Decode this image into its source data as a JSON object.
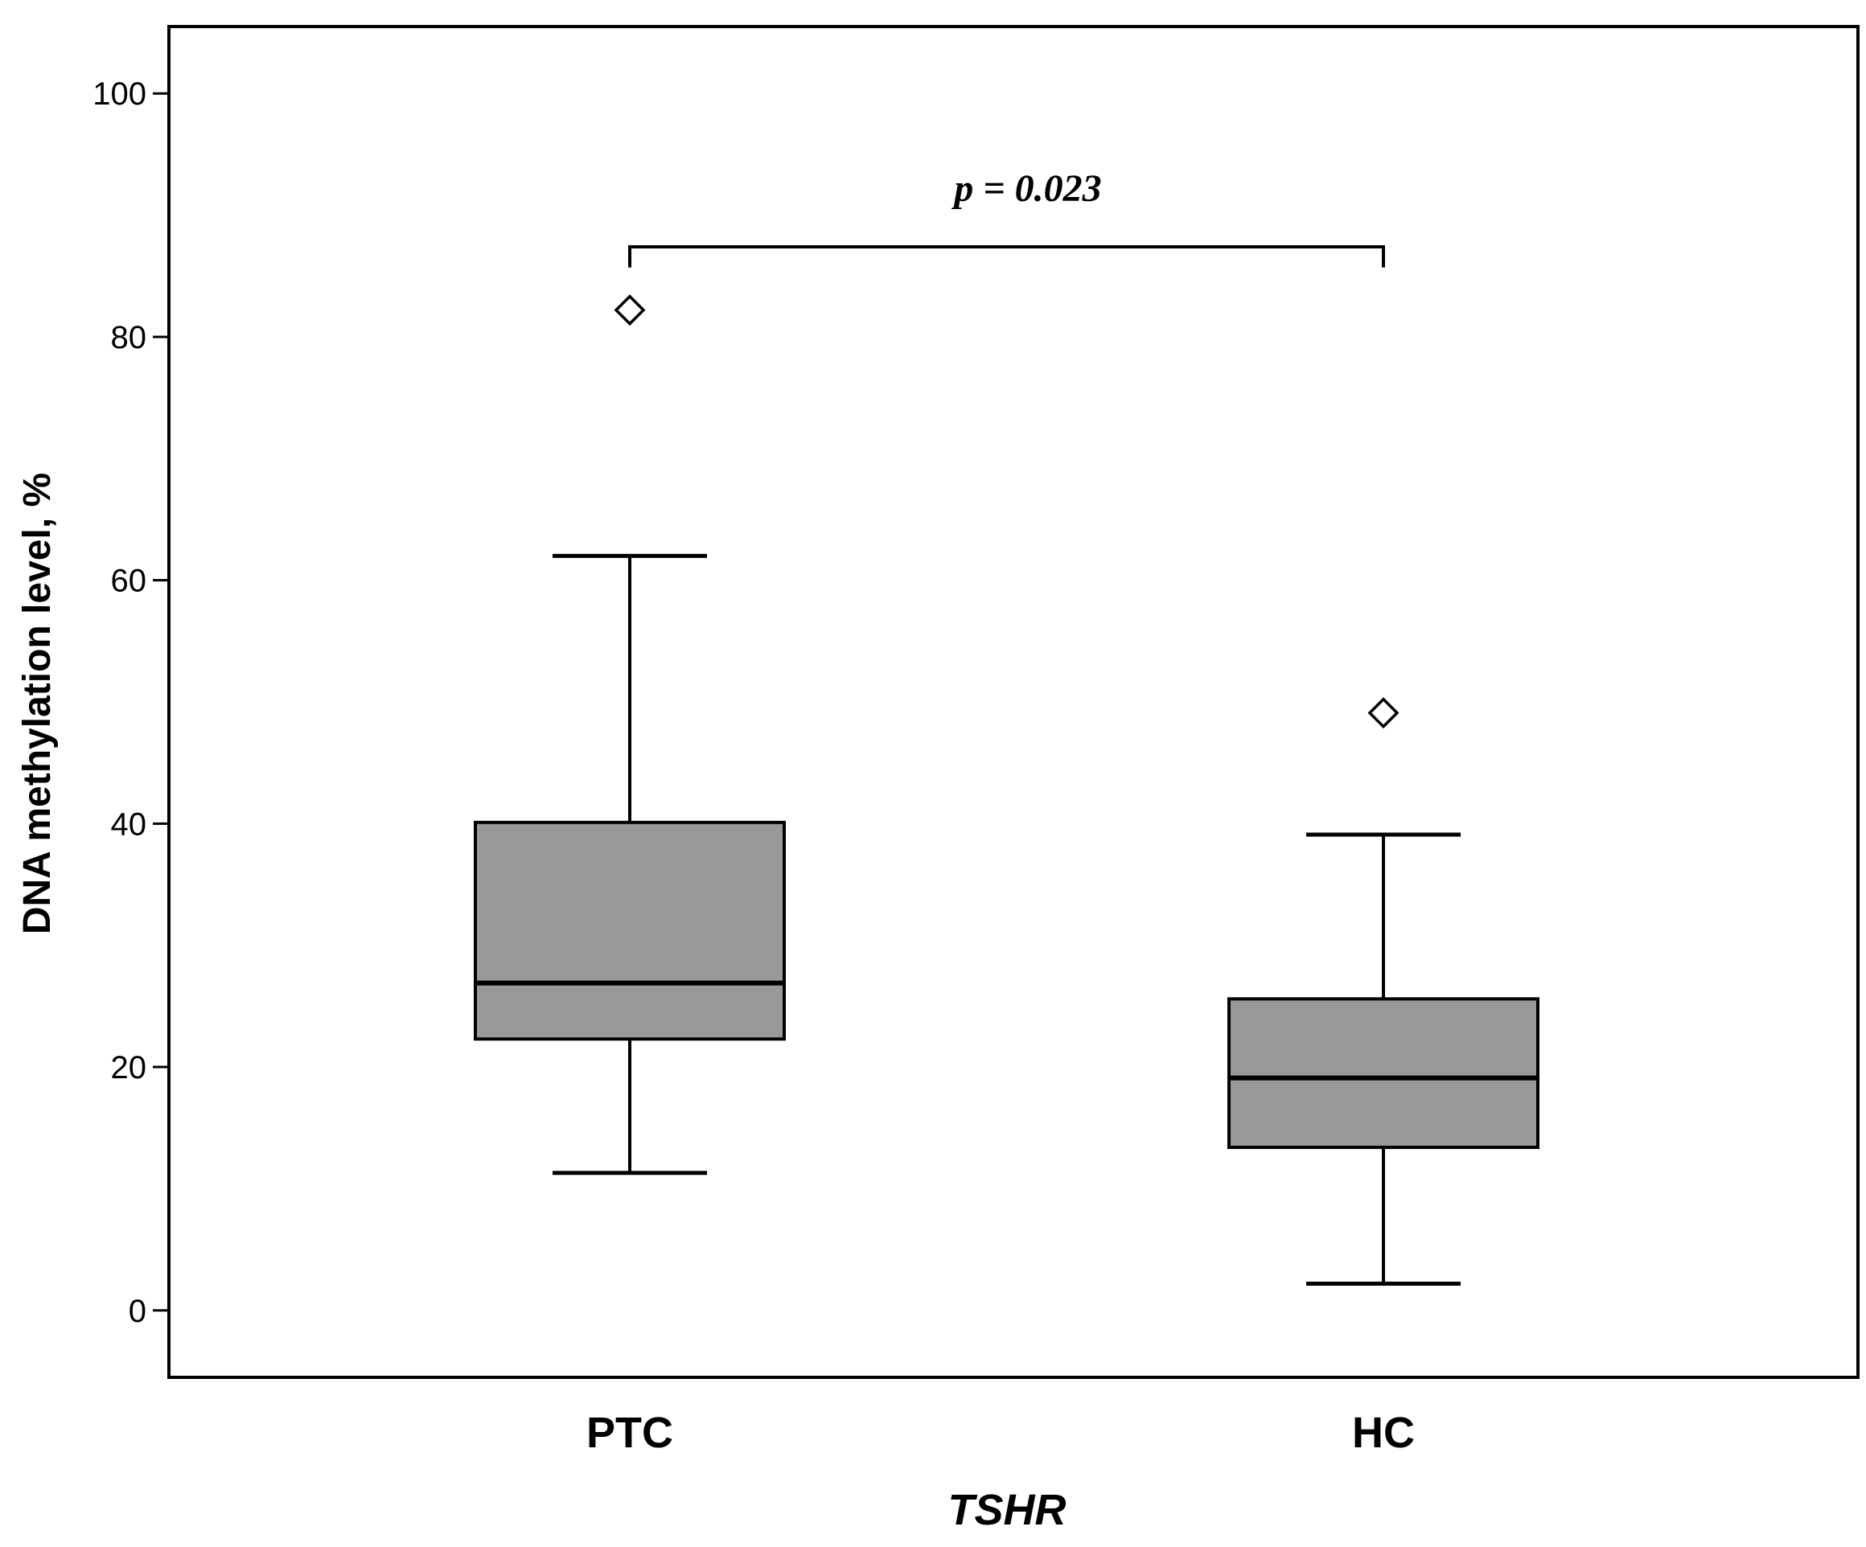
{
  "chart_data": {
    "type": "box",
    "title": "",
    "xlabel": "TSHR",
    "ylabel": "DNA methylation level, %",
    "ylim": [
      -5.5,
      105.5
    ],
    "yticks": [
      0,
      20,
      40,
      60,
      80,
      100
    ],
    "grid": false,
    "categories": [
      "PTC",
      "HC"
    ],
    "boxes": [
      {
        "category": "PTC",
        "whisker_low": 11.3,
        "q1": 22.3,
        "median": 26.9,
        "q3": 40.1,
        "whisker_high": 62.0,
        "outliers": [
          82.2
        ]
      },
      {
        "category": "HC",
        "whisker_low": 2.2,
        "q1": 13.4,
        "median": 19.1,
        "q3": 25.6,
        "whisker_high": 39.1,
        "outliers": [
          49.1
        ]
      }
    ],
    "box_color": "#999999",
    "annotation": {
      "text": "p = 0.023",
      "from": "PTC",
      "to": "HC",
      "bracket_y": 87.4,
      "bracket_drop_y": 85.7
    }
  }
}
